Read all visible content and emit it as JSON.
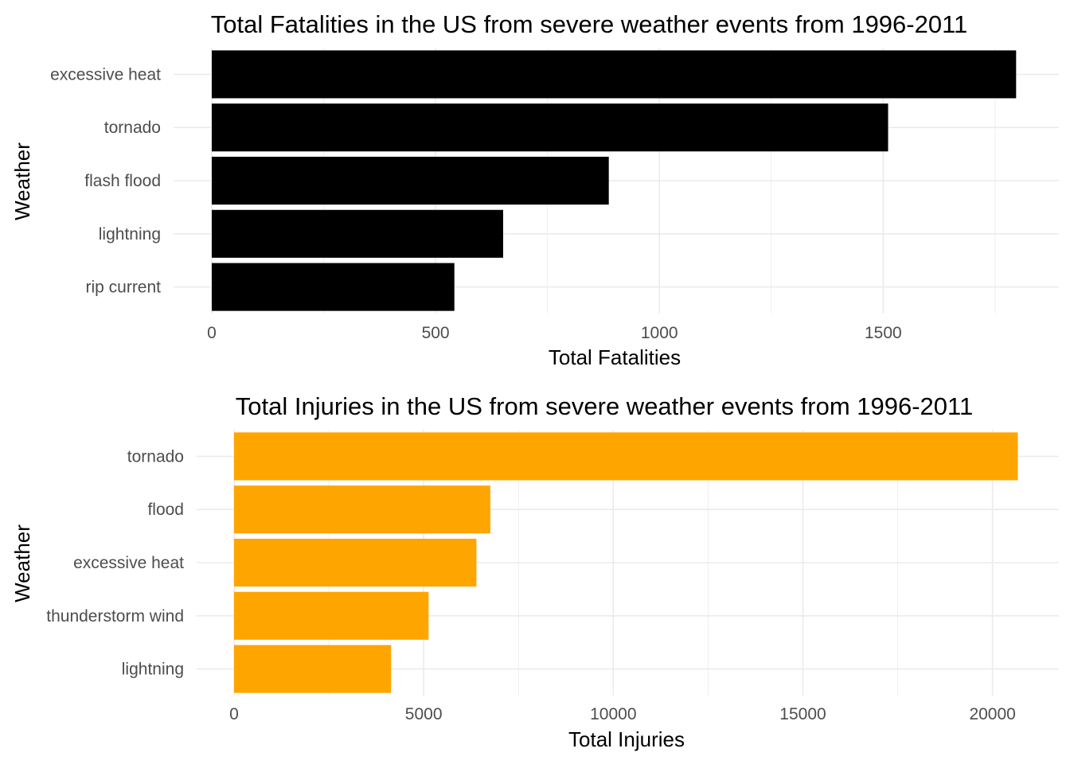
{
  "chart_data": [
    {
      "type": "bar",
      "orientation": "horizontal",
      "title": "Total Fatalities in the US from severe weather events from 1996-2011",
      "xlabel": "Total Fatalities",
      "ylabel": "Weather",
      "categories": [
        "excessive heat",
        "tornado",
        "flash flood",
        "lightning",
        "rip current"
      ],
      "values": [
        1797,
        1511,
        887,
        651,
        542
      ],
      "xlim": [
        0,
        1800
      ],
      "xticks": [
        0,
        500,
        1000,
        1500
      ],
      "xtick_labels": [
        "0",
        "500",
        "1000",
        "1500"
      ],
      "bar_color": "#000000",
      "grid": true
    },
    {
      "type": "bar",
      "orientation": "horizontal",
      "title": "Total Injuries in the US from severe weather events from 1996-2011",
      "xlabel": "Total Injuries",
      "ylabel": "Weather",
      "categories": [
        "tornado",
        "flood",
        "excessive heat",
        "thunderstorm wind",
        "lightning"
      ],
      "values": [
        20667,
        6758,
        6391,
        5129,
        4141
      ],
      "xlim": [
        0,
        20700
      ],
      "xticks": [
        0,
        5000,
        10000,
        15000,
        20000
      ],
      "xtick_labels": [
        "0",
        "5000",
        "10000",
        "15000",
        "20000"
      ],
      "bar_color": "#ffa500",
      "grid": true
    }
  ]
}
